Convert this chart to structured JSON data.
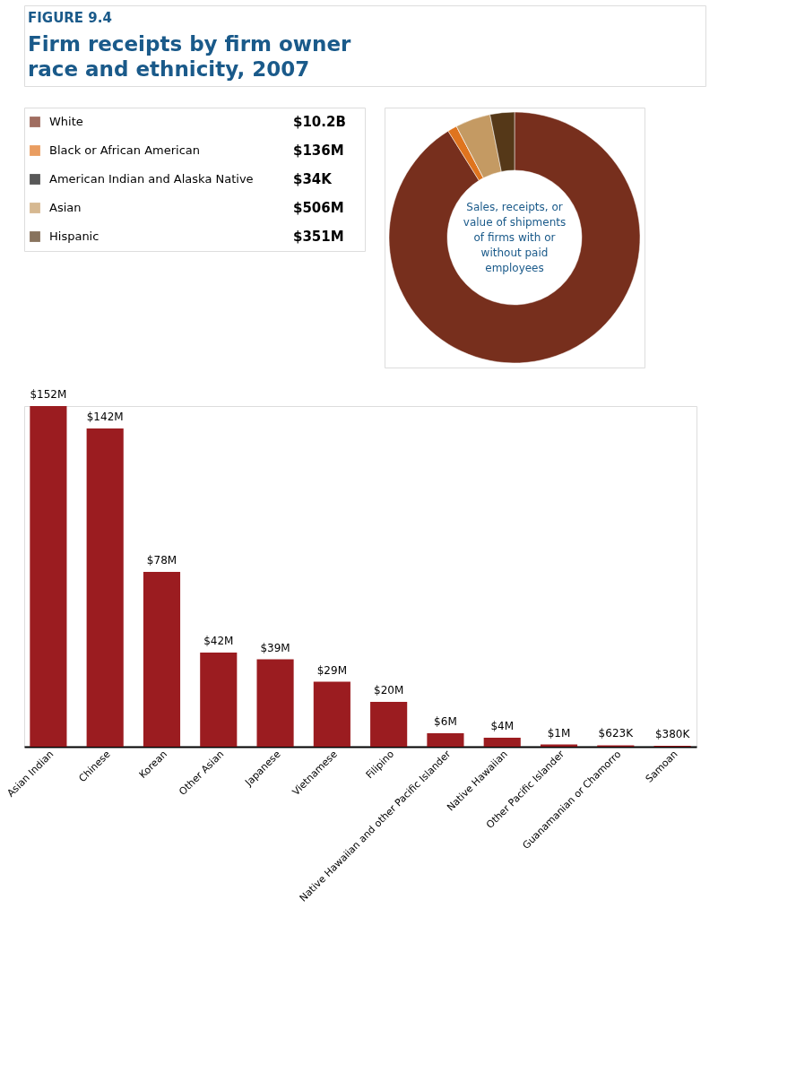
{
  "chart_data": [
    {
      "type": "donut",
      "subtitle": "FIGURE 9.4",
      "title": "Firm receipts by firm owner race and ethnicity, 2007",
      "categories": [
        "White",
        "Black or African American",
        "American Indian and Alaska Native",
        "Asian",
        "Hispanic"
      ],
      "values": [
        10200000000,
        136000000,
        34000,
        506000000,
        351000000
      ],
      "value_labels": [
        "$10.2B",
        "$136M",
        "$34K",
        "$506M",
        "$351M"
      ],
      "colors": [
        "#772f1d",
        "#df741e",
        "#111111",
        "#c49a63",
        "#553818"
      ],
      "legend": "left",
      "annotations": [
        "Sales, receipts, or value of shipments of firms with or without paid employees"
      ]
    },
    {
      "type": "bar",
      "categories": [
        "Asian Indian",
        "Chinese",
        "Korean",
        "Other Asian",
        "Japanese",
        "Vietnamese",
        "Filipino",
        "Native Hawaiian and other Pacific Islander",
        "Native Hawaiian",
        "Other Pacific Islander",
        "Guanamanian or Chamorro",
        "Samoan"
      ],
      "values": [
        152000000,
        142000000,
        78000000,
        42000000,
        39000000,
        29000000,
        20000000,
        6000000,
        4000000,
        1000000,
        623000,
        380000
      ],
      "value_labels": [
        "$152M",
        "$142M",
        "$78M",
        "$42M",
        "$39M",
        "$29M",
        "$20M",
        "$6M",
        "$4M",
        "$1M",
        "$623K",
        "$380K"
      ],
      "color": "#9b1c20",
      "tick_labels": "x",
      "grid": false
    }
  ]
}
